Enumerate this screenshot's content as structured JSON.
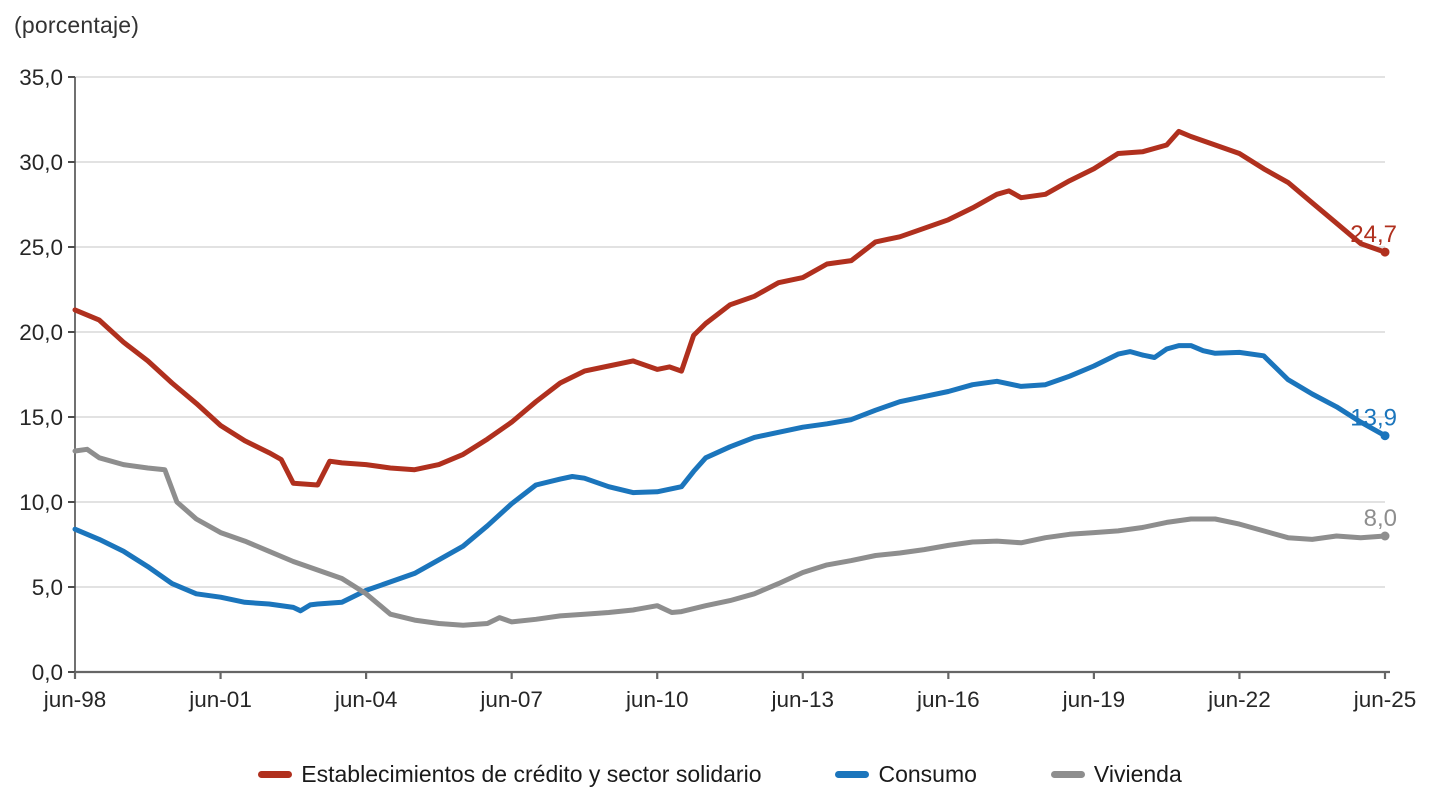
{
  "title": "(porcentaje)",
  "chart_data": {
    "type": "line",
    "title": "(porcentaje)",
    "grid": "horizontal",
    "legend_position": "bottom",
    "x_axis": {
      "tick_labels": [
        "jun-98",
        "jun-01",
        "jun-04",
        "jun-07",
        "jun-10",
        "jun-13",
        "jun-16",
        "jun-19",
        "jun-22",
        "jun-25"
      ],
      "tick_interval_years": 3,
      "domain_years": 27
    },
    "y_axis": {
      "min": 0,
      "max": 35,
      "step": 5,
      "tick_labels": [
        "0,0",
        "5,0",
        "10,0",
        "15,0",
        "20,0",
        "25,0",
        "30,0",
        "35,0"
      ]
    },
    "series": [
      {
        "name": "Establecimientos de crédito y sector solidario",
        "color": "#b0301e",
        "end_label": "24,7",
        "end_value": 24.7,
        "points": [
          [
            0,
            21.3
          ],
          [
            0.5,
            20.7
          ],
          [
            1,
            19.4
          ],
          [
            1.5,
            18.3
          ],
          [
            2,
            17.0
          ],
          [
            2.5,
            15.8
          ],
          [
            3,
            14.5
          ],
          [
            3.5,
            13.6
          ],
          [
            4,
            12.9
          ],
          [
            4.25,
            12.5
          ],
          [
            4.5,
            11.1
          ],
          [
            5,
            11.0
          ],
          [
            5.25,
            12.4
          ],
          [
            5.5,
            12.3
          ],
          [
            6,
            12.2
          ],
          [
            6.5,
            12.0
          ],
          [
            7,
            11.9
          ],
          [
            7.5,
            12.2
          ],
          [
            8,
            12.8
          ],
          [
            8.5,
            13.7
          ],
          [
            9,
            14.7
          ],
          [
            9.5,
            15.9
          ],
          [
            10,
            17.0
          ],
          [
            10.5,
            17.7
          ],
          [
            11,
            18.0
          ],
          [
            11.5,
            18.3
          ],
          [
            12,
            17.8
          ],
          [
            12.25,
            17.95
          ],
          [
            12.5,
            17.7
          ],
          [
            12.75,
            19.8
          ],
          [
            13,
            20.5
          ],
          [
            13.5,
            21.6
          ],
          [
            14,
            22.1
          ],
          [
            14.5,
            22.9
          ],
          [
            15,
            23.2
          ],
          [
            15.5,
            24.0
          ],
          [
            16,
            24.2
          ],
          [
            16.5,
            25.3
          ],
          [
            17,
            25.6
          ],
          [
            17.5,
            26.1
          ],
          [
            18,
            26.6
          ],
          [
            18.5,
            27.3
          ],
          [
            19,
            28.1
          ],
          [
            19.25,
            28.3
          ],
          [
            19.5,
            27.9
          ],
          [
            20,
            28.1
          ],
          [
            20.5,
            28.9
          ],
          [
            21,
            29.6
          ],
          [
            21.5,
            30.5
          ],
          [
            22,
            30.6
          ],
          [
            22.5,
            31.0
          ],
          [
            22.75,
            31.8
          ],
          [
            23,
            31.5
          ],
          [
            23.5,
            31.0
          ],
          [
            24,
            30.5
          ],
          [
            24.5,
            29.6
          ],
          [
            25,
            28.8
          ],
          [
            25.5,
            27.6
          ],
          [
            26,
            26.4
          ],
          [
            26.5,
            25.2
          ],
          [
            27,
            24.7
          ]
        ]
      },
      {
        "name": "Consumo",
        "color": "#1b75bc",
        "end_label": "13,9",
        "end_value": 13.9,
        "points": [
          [
            0,
            8.4
          ],
          [
            0.5,
            7.8
          ],
          [
            1,
            7.1
          ],
          [
            1.5,
            6.2
          ],
          [
            2,
            5.2
          ],
          [
            2.5,
            4.6
          ],
          [
            3,
            4.4
          ],
          [
            3.5,
            4.1
          ],
          [
            4,
            4.0
          ],
          [
            4.5,
            3.8
          ],
          [
            4.65,
            3.6
          ],
          [
            4.85,
            3.95
          ],
          [
            5,
            4.0
          ],
          [
            5.5,
            4.1
          ],
          [
            6,
            4.8
          ],
          [
            6.5,
            5.3
          ],
          [
            7,
            5.8
          ],
          [
            7.5,
            6.6
          ],
          [
            8,
            7.4
          ],
          [
            8.5,
            8.6
          ],
          [
            9,
            9.9
          ],
          [
            9.5,
            11.0
          ],
          [
            10,
            11.35
          ],
          [
            10.25,
            11.5
          ],
          [
            10.5,
            11.4
          ],
          [
            11,
            10.9
          ],
          [
            11.5,
            10.55
          ],
          [
            12,
            10.6
          ],
          [
            12.5,
            10.9
          ],
          [
            12.75,
            11.8
          ],
          [
            13,
            12.6
          ],
          [
            13.5,
            13.25
          ],
          [
            14,
            13.8
          ],
          [
            14.5,
            14.1
          ],
          [
            15,
            14.4
          ],
          [
            15.5,
            14.6
          ],
          [
            16,
            14.85
          ],
          [
            16.5,
            15.4
          ],
          [
            17,
            15.9
          ],
          [
            17.5,
            16.2
          ],
          [
            18,
            16.5
          ],
          [
            18.5,
            16.9
          ],
          [
            19,
            17.1
          ],
          [
            19.5,
            16.8
          ],
          [
            20,
            16.9
          ],
          [
            20.5,
            17.4
          ],
          [
            21,
            18.0
          ],
          [
            21.5,
            18.7
          ],
          [
            21.75,
            18.85
          ],
          [
            22,
            18.65
          ],
          [
            22.25,
            18.5
          ],
          [
            22.5,
            19.0
          ],
          [
            22.75,
            19.2
          ],
          [
            23,
            19.2
          ],
          [
            23.25,
            18.9
          ],
          [
            23.5,
            18.75
          ],
          [
            24,
            18.8
          ],
          [
            24.5,
            18.6
          ],
          [
            25,
            17.2
          ],
          [
            25.5,
            16.35
          ],
          [
            26,
            15.6
          ],
          [
            26.5,
            14.7
          ],
          [
            27,
            13.9
          ]
        ]
      },
      {
        "name": "Vivienda",
        "color": "#8e8e8e",
        "end_label": "8,0",
        "end_value": 8.0,
        "points": [
          [
            0,
            13.0
          ],
          [
            0.25,
            13.1
          ],
          [
            0.5,
            12.6
          ],
          [
            1,
            12.2
          ],
          [
            1.5,
            12.0
          ],
          [
            1.85,
            11.9
          ],
          [
            2.1,
            10.0
          ],
          [
            2.5,
            9.0
          ],
          [
            3,
            8.2
          ],
          [
            3.5,
            7.7
          ],
          [
            4,
            7.1
          ],
          [
            4.5,
            6.5
          ],
          [
            5,
            6.0
          ],
          [
            5.5,
            5.5
          ],
          [
            6,
            4.6
          ],
          [
            6.5,
            3.4
          ],
          [
            7,
            3.05
          ],
          [
            7.5,
            2.85
          ],
          [
            8,
            2.75
          ],
          [
            8.5,
            2.85
          ],
          [
            8.75,
            3.2
          ],
          [
            9,
            2.95
          ],
          [
            9.5,
            3.1
          ],
          [
            10,
            3.3
          ],
          [
            10.5,
            3.4
          ],
          [
            11,
            3.5
          ],
          [
            11.5,
            3.65
          ],
          [
            12,
            3.9
          ],
          [
            12.3,
            3.5
          ],
          [
            12.5,
            3.55
          ],
          [
            13,
            3.9
          ],
          [
            13.5,
            4.2
          ],
          [
            14,
            4.6
          ],
          [
            14.5,
            5.2
          ],
          [
            15,
            5.85
          ],
          [
            15.5,
            6.3
          ],
          [
            16,
            6.55
          ],
          [
            16.5,
            6.85
          ],
          [
            17,
            7.0
          ],
          [
            17.5,
            7.2
          ],
          [
            18,
            7.45
          ],
          [
            18.5,
            7.65
          ],
          [
            19,
            7.7
          ],
          [
            19.5,
            7.6
          ],
          [
            20,
            7.9
          ],
          [
            20.5,
            8.1
          ],
          [
            21,
            8.2
          ],
          [
            21.5,
            8.3
          ],
          [
            22,
            8.5
          ],
          [
            22.5,
            8.8
          ],
          [
            23,
            9.0
          ],
          [
            23.5,
            9.0
          ],
          [
            24,
            8.7
          ],
          [
            24.5,
            8.3
          ],
          [
            25,
            7.9
          ],
          [
            25.5,
            7.8
          ],
          [
            26,
            8.0
          ],
          [
            26.5,
            7.9
          ],
          [
            27,
            8.0
          ]
        ]
      }
    ]
  },
  "colors": {
    "gridline": "#d9d9d9",
    "x_axis": "#666666",
    "y_axis": "#4d4d4d",
    "tick_label": "#262626",
    "legend_text": "#1a1a1a"
  }
}
